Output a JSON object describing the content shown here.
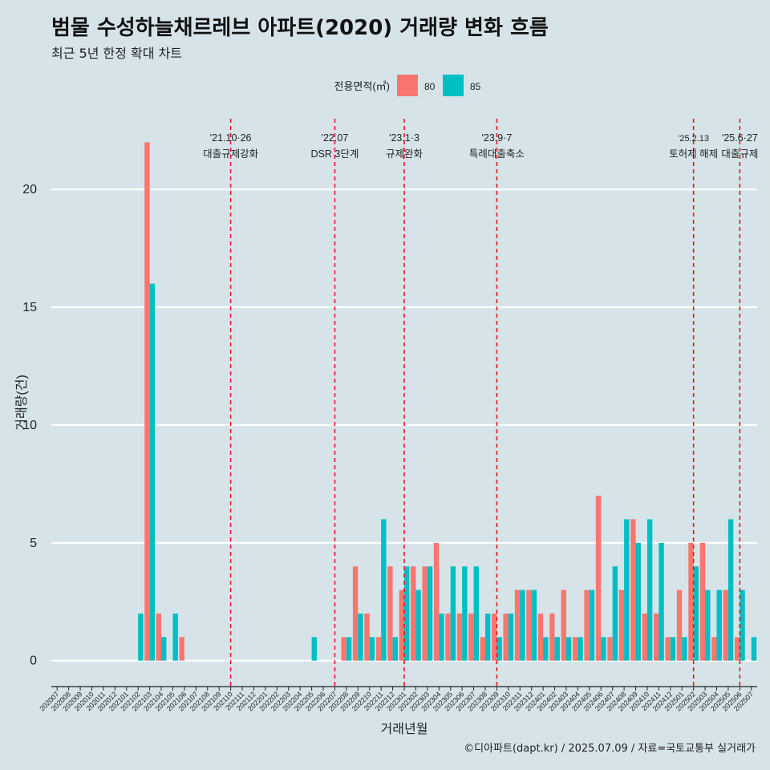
{
  "title": "범물 수성하늘채르레브 아파트(2020) 거래량 변화 흐름",
  "subtitle": "최근 5년 한정 확대 차트",
  "caption": "©디아파트(dapt.kr) / 2025.07.09 / 자료=국토교통부 실거래가",
  "colors": {
    "background": "#d6e4ea",
    "s80": "#f8766d",
    "s85": "#00bfc4",
    "vline": "#e31a1c",
    "grid": "#ffffff"
  },
  "chart_data": {
    "type": "bar",
    "xlabel": "거래년월",
    "ylabel": "거래량(건)",
    "ylim": [
      -1.1,
      23
    ],
    "yticks": [
      0,
      5,
      10,
      15,
      20
    ],
    "legend": {
      "title": "전용면적(㎡)",
      "position": "top"
    },
    "categories": [
      "202007",
      "202008",
      "202009",
      "202010",
      "202011",
      "202012",
      "202101",
      "202102",
      "202103",
      "202104",
      "202105",
      "202106",
      "202107",
      "202108",
      "202109",
      "202110",
      "202111",
      "202112",
      "202201",
      "202202",
      "202203",
      "202204",
      "202205",
      "202206",
      "202207",
      "202208",
      "202209",
      "202210",
      "202211",
      "202212",
      "202301",
      "202302",
      "202303",
      "202304",
      "202305",
      "202306",
      "202307",
      "202308",
      "202309",
      "202310",
      "202311",
      "202312",
      "202401",
      "202402",
      "202403",
      "202404",
      "202405",
      "202406",
      "202407",
      "202408",
      "202409",
      "202410",
      "202411",
      "202412",
      "202501",
      "202502",
      "202503",
      "202504",
      "202505",
      "202506",
      "202507"
    ],
    "series": [
      {
        "name": "80",
        "values": [
          0,
          0,
          0,
          0,
          0,
          0,
          0,
          0,
          22,
          2,
          0,
          1,
          0,
          0,
          0,
          0,
          0,
          0,
          0,
          0,
          0,
          0,
          0,
          0,
          0,
          1,
          4,
          2,
          1,
          4,
          3,
          4,
          4,
          5,
          2,
          2,
          2,
          1,
          2,
          2,
          3,
          3,
          2,
          2,
          3,
          1,
          3,
          7,
          1,
          3,
          6,
          2,
          2,
          1,
          3,
          5,
          5,
          1,
          3,
          1,
          0
        ]
      },
      {
        "name": "85",
        "values": [
          0,
          0,
          0,
          0,
          0,
          0,
          0,
          2,
          16,
          1,
          2,
          0,
          0,
          0,
          0,
          0,
          0,
          0,
          0,
          0,
          0,
          0,
          1,
          0,
          0,
          1,
          2,
          1,
          6,
          1,
          4,
          3,
          4,
          2,
          4,
          4,
          4,
          2,
          1,
          2,
          3,
          3,
          1,
          1,
          1,
          1,
          3,
          1,
          4,
          6,
          5,
          6,
          5,
          1,
          1,
          4,
          3,
          3,
          6,
          3,
          1
        ]
      }
    ],
    "annotations": [
      {
        "x": "202110",
        "label": "'21.10·26",
        "label2": "대출규제강화"
      },
      {
        "x": "202207",
        "label": "'22.07",
        "label2": "DSR 3단계"
      },
      {
        "x": "202301",
        "label": "'23.1·3",
        "label2": "규제완화"
      },
      {
        "x": "202309",
        "label": "'23.9·7",
        "label2": "특례대출축소"
      },
      {
        "x": "202502",
        "label": "'25.2.13",
        "label2": "토허제 해제"
      },
      {
        "x": "202506",
        "label": "'25.6·27",
        "label2": "대출규제"
      }
    ]
  }
}
